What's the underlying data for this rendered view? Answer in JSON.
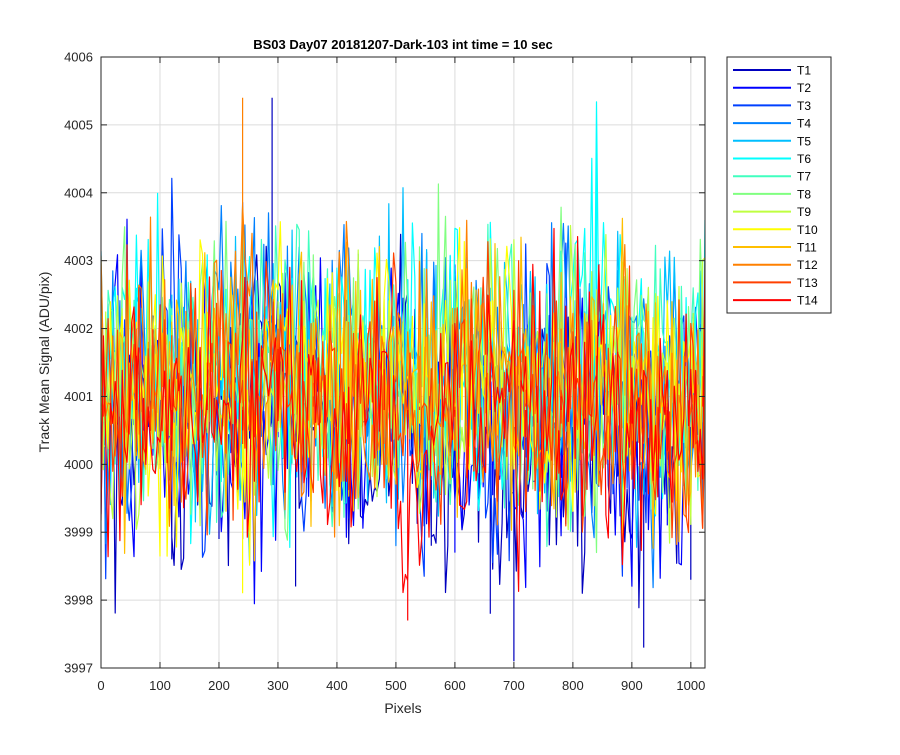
{
  "chart_data": {
    "type": "line",
    "title": "BS03 Day07 20181207-Dark-103 int time = 10 sec",
    "xlabel": "Pixels",
    "ylabel": "Track Mean Signal (ADU/pix)",
    "xlim": [
      0,
      1024
    ],
    "ylim": [
      3997,
      4006
    ],
    "xticks": [
      0,
      100,
      200,
      300,
      400,
      500,
      600,
      700,
      800,
      900,
      1000
    ],
    "yticks": [
      3997,
      3998,
      3999,
      4000,
      4001,
      4002,
      4003,
      4004,
      4005,
      4006
    ],
    "grid": true,
    "legend_position": "outside-top-right",
    "x_sample_step": 4,
    "series": [
      {
        "name": "T1",
        "color": "#0000bf",
        "mean": 4000.55,
        "amp": 1.3,
        "x": [
          0,
          40,
          80,
          120,
          160,
          200,
          240,
          290,
          330,
          360,
          400,
          440,
          480,
          520,
          560,
          600,
          640,
          660,
          700,
          750,
          800,
          840,
          880,
          920,
          960,
          1000,
          1020
        ],
        "values": [
          4000.4,
          3999.9,
          4001.2,
          3998.6,
          4000.8,
          3998.9,
          4001.9,
          4005.4,
          3998.2,
          4000.5,
          4002.1,
          3999.3,
          4000.9,
          4001.6,
          3998.8,
          4000.3,
          4001.1,
          3997.8,
          3997.1,
          4000.7,
          3999.0,
          4001.4,
          3999.5,
          3997.3,
          4000.6,
          3998.3,
          4000.2
        ]
      },
      {
        "name": "T2",
        "color": "#0000ff",
        "mean": 4000.65,
        "amp": 1.25,
        "x": [
          0,
          60,
          120,
          180,
          240,
          300,
          360,
          420,
          480,
          540,
          600,
          660,
          720,
          780,
          840,
          900,
          960,
          1020
        ],
        "values": [
          4000.8,
          4001.6,
          3999.6,
          4002.2,
          3998.9,
          4000.4,
          4001.8,
          3999.2,
          4000.7,
          4002.0,
          3998.7,
          4001.3,
          4000.1,
          3999.8,
          4001.7,
          4000.2,
          3999.1,
          4000.6
        ]
      },
      {
        "name": "T3",
        "color": "#0040ff",
        "mean": 4000.9,
        "amp": 1.25,
        "x": [
          0,
          60,
          120,
          180,
          240,
          300,
          360,
          420,
          480,
          540,
          600,
          660,
          720,
          780,
          840,
          900,
          960,
          1020
        ],
        "values": [
          4001.2,
          4000.5,
          4002.4,
          3999.7,
          4001.3,
          4000.8,
          4002.6,
          3999.9,
          4001.5,
          4000.4,
          4002.1,
          3999.5,
          4001.6,
          4000.9,
          4002.3,
          4000.2,
          4001.0,
          4001.8
        ]
      },
      {
        "name": "T4",
        "color": "#0080ff",
        "mean": 4001.0,
        "amp": 1.25,
        "x": [
          0,
          60,
          120,
          180,
          240,
          300,
          360,
          420,
          480,
          540,
          600,
          660,
          720,
          780,
          840,
          900,
          960,
          1020
        ],
        "values": [
          4001.4,
          4002.3,
          4000.6,
          4001.8,
          4003.4,
          4000.9,
          4001.5,
          4002.7,
          4000.3,
          4001.7,
          4002.9,
          4000.8,
          4001.2,
          4002.4,
          4000.5,
          4001.9,
          4000.7,
          4001.3
        ]
      },
      {
        "name": "T5",
        "color": "#00bfff",
        "mean": 4001.1,
        "amp": 1.25,
        "x": [
          0,
          60,
          120,
          180,
          240,
          300,
          360,
          420,
          480,
          540,
          600,
          660,
          720,
          780,
          840,
          900,
          960,
          1020
        ],
        "values": [
          4001.6,
          4000.9,
          4002.5,
          4001.2,
          4000.4,
          4002.8,
          4001.1,
          4000.6,
          4002.2,
          4001.5,
          4000.8,
          4002.6,
          4001.0,
          4000.3,
          4002.1,
          4001.4,
          4000.9,
          4001.7
        ]
      },
      {
        "name": "T6",
        "color": "#00ffff",
        "mean": 4001.15,
        "amp": 1.25,
        "x": [
          0,
          60,
          120,
          180,
          240,
          300,
          360,
          420,
          480,
          540,
          600,
          660,
          720,
          780,
          840,
          900,
          960,
          1020
        ],
        "values": [
          4001.9,
          4002.6,
          4000.7,
          4001.3,
          4002.4,
          4000.9,
          4001.6,
          4003.0,
          4000.5,
          4001.8,
          4002.2,
          4000.8,
          4001.4,
          4002.7,
          4004.9,
          4001.2,
          4000.6,
          4002.0
        ]
      },
      {
        "name": "T7",
        "color": "#40ffbf",
        "mean": 4001.1,
        "amp": 1.2,
        "x": [
          0,
          60,
          120,
          180,
          240,
          300,
          360,
          420,
          480,
          540,
          600,
          660,
          720,
          780,
          840,
          900,
          960,
          1020
        ],
        "values": [
          4001.5,
          4000.8,
          4002.3,
          4001.1,
          4000.5,
          4002.6,
          4001.4,
          4000.7,
          4002.1,
          4001.6,
          4000.4,
          4002.4,
          4001.2,
          4000.6,
          4002.0,
          4001.3,
          4000.9,
          4001.8
        ]
      },
      {
        "name": "T8",
        "color": "#80ff80",
        "mean": 4001.1,
        "amp": 1.2,
        "x": [
          0,
          60,
          120,
          180,
          240,
          300,
          360,
          420,
          480,
          540,
          600,
          660,
          720,
          780,
          840,
          900,
          960,
          1020
        ],
        "values": [
          4001.2,
          4002.0,
          4000.6,
          4001.7,
          4002.5,
          4000.9,
          4001.3,
          4002.2,
          4000.4,
          4001.9,
          4002.7,
          4000.8,
          4001.5,
          4002.1,
          4000.7,
          4001.6,
          4000.5,
          4001.4
        ]
      },
      {
        "name": "T9",
        "color": "#bfff40",
        "mean": 4001.1,
        "amp": 1.2,
        "x": [
          0,
          60,
          120,
          180,
          240,
          300,
          360,
          420,
          480,
          540,
          600,
          660,
          720,
          780,
          840,
          900,
          960,
          1020
        ],
        "values": [
          4001.8,
          4000.7,
          4002.2,
          4001.0,
          4000.3,
          4002.4,
          4001.5,
          4000.8,
          4002.0,
          4001.2,
          4000.6,
          4002.3,
          4001.1,
          4000.4,
          4002.5,
          4001.3,
          4000.7,
          4001.6
        ]
      },
      {
        "name": "T10",
        "color": "#ffff00",
        "mean": 4001.0,
        "amp": 1.2,
        "x": [
          0,
          60,
          120,
          180,
          240,
          300,
          360,
          420,
          480,
          540,
          600,
          660,
          720,
          780,
          840,
          900,
          960,
          1020
        ],
        "values": [
          4001.3,
          4002.1,
          4000.5,
          4001.6,
          3998.1,
          4002.3,
          4000.8,
          4001.4,
          4002.0,
          4000.6,
          4001.7,
          4002.4,
          4000.9,
          4001.2,
          4002.2,
          4000.7,
          4001.5,
          4001.0
        ]
      },
      {
        "name": "T11",
        "color": "#ffbf00",
        "mean": 4000.95,
        "amp": 1.2,
        "x": [
          0,
          60,
          120,
          180,
          240,
          300,
          360,
          420,
          480,
          540,
          600,
          660,
          720,
          780,
          840,
          900,
          960,
          1020
        ],
        "values": [
          4001.0,
          4000.4,
          4002.1,
          4001.3,
          4000.6,
          4002.0,
          4001.2,
          4000.5,
          4001.8,
          4001.1,
          4000.3,
          4002.2,
          4001.0,
          4000.7,
          4001.9,
          4001.2,
          4000.5,
          4001.4
        ]
      },
      {
        "name": "T12",
        "color": "#ff8000",
        "mean": 4000.9,
        "amp": 1.2,
        "x": [
          0,
          60,
          120,
          180,
          240,
          300,
          360,
          420,
          480,
          540,
          600,
          660,
          720,
          780,
          840,
          900,
          960,
          1020
        ],
        "values": [
          4001.4,
          4002.0,
          4000.4,
          4001.5,
          4005.4,
          4000.7,
          4001.2,
          4002.1,
          4000.3,
          4001.6,
          4002.3,
          4000.6,
          4001.1,
          4002.0,
          4000.5,
          4001.4,
          4000.6,
          4001.3
        ]
      },
      {
        "name": "T13",
        "color": "#ff4000",
        "mean": 4000.85,
        "amp": 1.2,
        "x": [
          0,
          60,
          120,
          180,
          240,
          300,
          360,
          420,
          480,
          540,
          600,
          660,
          720,
          780,
          840,
          900,
          960,
          1020
        ],
        "values": [
          4001.1,
          4000.5,
          4001.9,
          4000.9,
          4000.3,
          4002.0,
          4001.0,
          4000.4,
          4001.7,
          4000.8,
          4000.2,
          4001.8,
          4000.9,
          4000.6,
          4001.6,
          4000.8,
          4000.3,
          4001.0
        ]
      },
      {
        "name": "T14",
        "color": "#ff0000",
        "mean": 4000.8,
        "amp": 1.15,
        "x": [
          0,
          60,
          120,
          180,
          240,
          300,
          360,
          420,
          480,
          520,
          600,
          660,
          720,
          780,
          840,
          900,
          960,
          1020
        ],
        "values": [
          4000.9,
          4001.6,
          4000.2,
          4001.2,
          4000.5,
          4001.7,
          4000.8,
          4000.3,
          4001.4,
          3997.7,
          4000.7,
          4001.5,
          4000.4,
          4001.0,
          4001.3,
          4000.6,
          4000.2,
          4000.8
        ]
      }
    ]
  }
}
